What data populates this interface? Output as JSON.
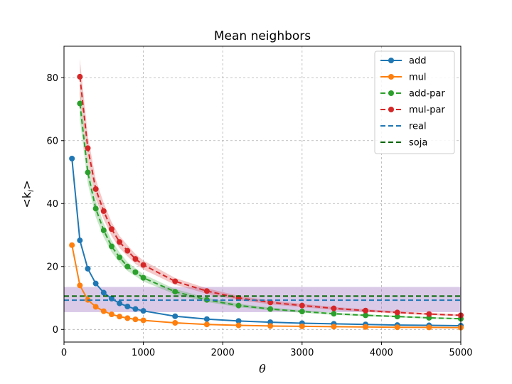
{
  "chart_data": {
    "type": "line",
    "title": "Mean neighbors",
    "xlabel": "θ",
    "ylabel": "<k_i>",
    "ylabel_display": {
      "base": "<k",
      "sub": "i",
      "close": ">"
    },
    "xlim": [
      0,
      5000
    ],
    "ylim": [
      -4,
      90
    ],
    "xticks": [
      "0",
      "1000",
      "2000",
      "3000",
      "4000",
      "5000"
    ],
    "yticks": [
      "0",
      "20",
      "40",
      "60",
      "80"
    ],
    "grid": true,
    "legend_position": "top-right",
    "series": [
      {
        "name": "add",
        "color": "#1f77b4",
        "style": "solid",
        "x": [
          100,
          200,
          300,
          400,
          500,
          600,
          700,
          800,
          900,
          1000,
          1400,
          1800,
          2200,
          2600,
          3000,
          3400,
          3800,
          4200,
          4600,
          5000
        ],
        "y": [
          54.3,
          28.3,
          19.3,
          14.6,
          11.7,
          9.8,
          8.3,
          7.3,
          6.5,
          5.9,
          4.2,
          3.3,
          2.7,
          2.3,
          2.0,
          1.8,
          1.6,
          1.4,
          1.3,
          1.2
        ]
      },
      {
        "name": "mul",
        "color": "#ff7f0e",
        "style": "solid",
        "x": [
          100,
          200,
          300,
          400,
          500,
          600,
          700,
          800,
          900,
          1000,
          1400,
          1800,
          2200,
          2600,
          3000,
          3400,
          3800,
          4200,
          4600,
          5000
        ],
        "y": [
          26.8,
          14.0,
          9.4,
          7.2,
          5.8,
          4.8,
          4.1,
          3.6,
          3.2,
          2.9,
          2.1,
          1.6,
          1.3,
          1.1,
          1.0,
          0.9,
          0.8,
          0.7,
          0.65,
          0.6
        ]
      },
      {
        "name": "add-par",
        "color": "#2ca02c",
        "style": "dashed",
        "x": [
          200,
          300,
          400,
          500,
          600,
          700,
          800,
          900,
          1000,
          1400,
          1800,
          2200,
          2600,
          3000,
          3400,
          3800,
          4200,
          4600,
          5000
        ],
        "y": [
          71.8,
          49.9,
          38.4,
          31.5,
          26.4,
          22.9,
          20.0,
          18.2,
          16.4,
          12.0,
          9.4,
          7.6,
          6.5,
          5.7,
          5.0,
          4.5,
          4.1,
          3.7,
          3.4
        ],
        "band": 0.07
      },
      {
        "name": "mul-par",
        "color": "#d62728",
        "style": "dashed",
        "x": [
          200,
          300,
          400,
          500,
          600,
          700,
          800,
          900,
          1000,
          1400,
          1800,
          2200,
          2600,
          3000,
          3400,
          3800,
          4200,
          4600,
          5000
        ],
        "y": [
          80.3,
          57.6,
          44.6,
          37.6,
          31.9,
          27.8,
          25.0,
          22.4,
          20.5,
          15.3,
          12.2,
          10.0,
          8.6,
          7.6,
          6.7,
          6.0,
          5.4,
          4.9,
          4.5
        ],
        "band": 0.07
      },
      {
        "name": "real",
        "color": "#1f77b4",
        "style": "dashed-h",
        "y": 9.3
      },
      {
        "name": "soja",
        "color": "#006400",
        "style": "dashed-h",
        "y": 10.6
      }
    ],
    "band_region": {
      "color": "#9467bd",
      "y_range": [
        5.5,
        13.5
      ]
    }
  }
}
